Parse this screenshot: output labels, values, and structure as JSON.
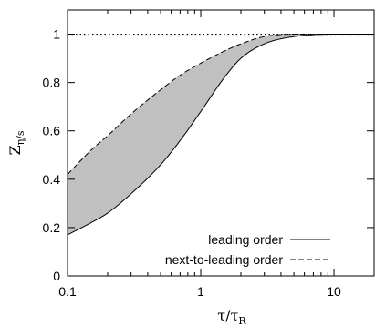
{
  "chart_data": {
    "type": "line",
    "xlabel": "τ/τ",
    "xlabel_sub": "R",
    "ylabel": "Z",
    "ylabel_sub": "η/s",
    "x_scale": "log",
    "xlim": [
      0.1,
      20
    ],
    "ylim": [
      0,
      1.1
    ],
    "x_ticks": [
      0.1,
      1,
      10
    ],
    "x_tick_labels": [
      "0.1",
      "1",
      "10"
    ],
    "y_ticks": [
      0,
      0.2,
      0.4,
      0.6,
      0.8,
      1
    ],
    "y_tick_labels": [
      "0",
      "0.2",
      "0.4",
      "0.6",
      "0.8",
      "1"
    ],
    "grid": false,
    "legend_position": "bottom-right",
    "reference_line": {
      "y": 1,
      "style": "dotted"
    },
    "band": {
      "between": [
        "leading order",
        "next-to-leading order"
      ],
      "fill": "#c0c0c0"
    },
    "series": [
      {
        "name": "leading order",
        "style": "solid",
        "x": [
          0.1,
          0.15,
          0.2,
          0.3,
          0.5,
          0.7,
          1,
          1.5,
          2,
          3,
          5,
          10,
          20
        ],
        "y": [
          0.17,
          0.22,
          0.26,
          0.34,
          0.46,
          0.56,
          0.68,
          0.82,
          0.9,
          0.96,
          0.99,
          1.0,
          1.0
        ]
      },
      {
        "name": "next-to-leading order",
        "style": "dashed",
        "x": [
          0.1,
          0.15,
          0.2,
          0.3,
          0.5,
          0.7,
          1,
          1.5,
          2,
          3,
          5,
          10,
          20
        ],
        "y": [
          0.42,
          0.52,
          0.58,
          0.67,
          0.77,
          0.83,
          0.88,
          0.93,
          0.96,
          0.99,
          1.0,
          1.0,
          1.0
        ]
      }
    ]
  }
}
